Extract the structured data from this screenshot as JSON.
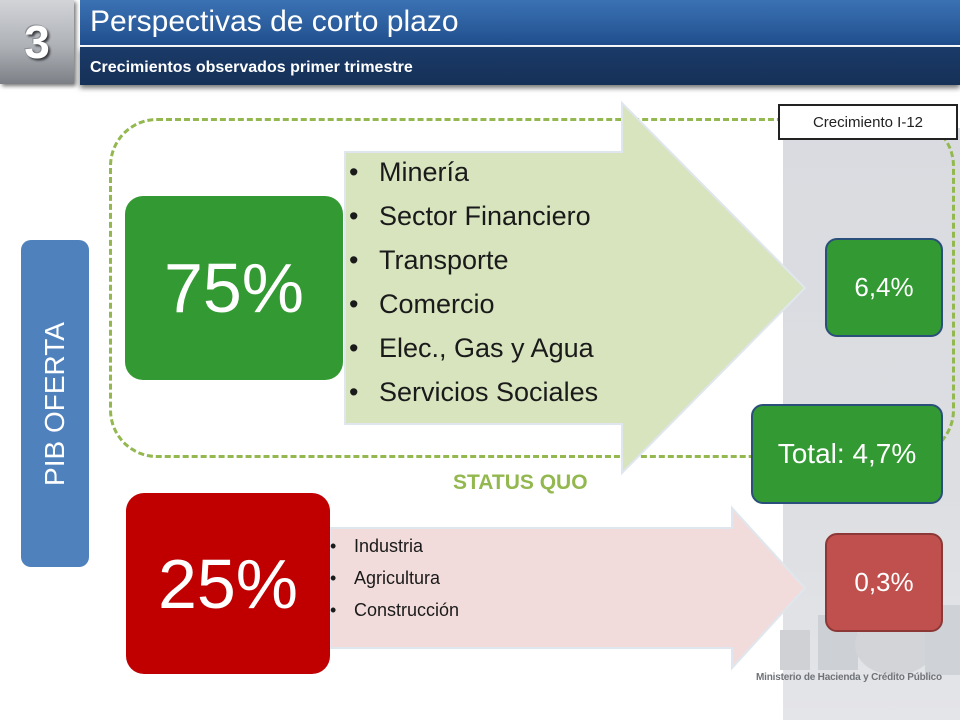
{
  "header": {
    "section_number": "3",
    "title": "Perspectivas de corto plazo",
    "subtitle": "Crecimientos observados primer trimestre"
  },
  "side_label": "PIB OFERTA",
  "growth_label": "Crecimiento I-12",
  "upper_group": {
    "share": "75%",
    "sectors": [
      "Minería",
      "Sector Financiero",
      "Transporte",
      "Comercio",
      "Elec., Gas y Agua",
      "Servicios Sociales"
    ],
    "growth": "6,4%"
  },
  "total": "Total: 4,7%",
  "status_label": "STATUS QUO",
  "lower_group": {
    "share": "25%",
    "sectors": [
      "Industria",
      "Agricultura",
      "Construcción"
    ],
    "growth": "0,3%"
  },
  "footer": {
    "ministry": "Ministerio de Hacienda y Crédito Público"
  },
  "colors": {
    "title_bar": "#2d5f9f",
    "subtitle_bar": "#163158",
    "pib_box": "#4f81bd",
    "green": "#339933",
    "red": "#c00000",
    "red_light": "#c0504d",
    "dashed_border": "#93b84f",
    "upper_arrow": "#d7e4bd",
    "lower_arrow": "#f2dcdb"
  }
}
